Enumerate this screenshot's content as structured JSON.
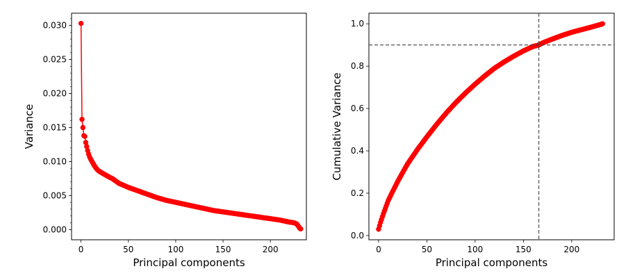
{
  "chart_data": [
    {
      "type": "line",
      "xlabel": "Principal components",
      "ylabel": "Variance",
      "xlim": [
        -10,
        238
      ],
      "ylim": [
        -0.0015,
        0.0318
      ],
      "xticks": [
        0,
        50,
        100,
        150,
        200
      ],
      "xtick_labels": [
        "0",
        "50",
        "100",
        "150",
        "200"
      ],
      "yticks": [
        0.0,
        0.005,
        0.01,
        0.015,
        0.02,
        0.025,
        0.03
      ],
      "ytick_labels": [
        "0.000",
        "0.005",
        "0.010",
        "0.015",
        "0.020",
        "0.025",
        "0.030"
      ],
      "grid": false,
      "series": [
        {
          "color": "#ff0000",
          "marker": "circle",
          "x": [
            0,
            1,
            2,
            3,
            4,
            5,
            6,
            7,
            8,
            9,
            10,
            12,
            14,
            16,
            18,
            20,
            25,
            30,
            33,
            35,
            40,
            45,
            50,
            60,
            70,
            80,
            90,
            100,
            110,
            120,
            130,
            140,
            150,
            160,
            170,
            180,
            190,
            200,
            210,
            220,
            225,
            228,
            229,
            230,
            231,
            232
          ],
          "y": [
            0.0303,
            0.0162,
            0.015,
            0.0138,
            0.0137,
            0.0128,
            0.0122,
            0.0116,
            0.0111,
            0.0107,
            0.0104,
            0.0099,
            0.0094,
            0.009,
            0.0087,
            0.0085,
            0.0081,
            0.0077,
            0.0075,
            0.0073,
            0.0068,
            0.0065,
            0.0062,
            0.0057,
            0.0052,
            0.0047,
            0.0043,
            0.004,
            0.0037,
            0.0034,
            0.0031,
            0.0028,
            0.0026,
            0.0024,
            0.0022,
            0.002,
            0.0018,
            0.0016,
            0.0014,
            0.0011,
            0.001,
            0.0008,
            0.0006,
            0.0004,
            0.0002,
            0.0001
          ]
        }
      ]
    },
    {
      "type": "line",
      "xlabel": "Principal components",
      "ylabel": "Cumulative Variance",
      "xlim": [
        -10,
        244
      ],
      "ylim": [
        -0.02,
        1.05
      ],
      "xticks": [
        0,
        50,
        100,
        150,
        200
      ],
      "xtick_labels": [
        "0",
        "50",
        "100",
        "150",
        "200"
      ],
      "yticks": [
        0.0,
        0.2,
        0.4,
        0.6,
        0.8,
        1.0
      ],
      "ytick_labels": [
        "0.0",
        "0.2",
        "0.4",
        "0.6",
        "0.8",
        "1.0"
      ],
      "grid": false,
      "reference_lines": [
        {
          "orientation": "horizontal",
          "value": 0.9,
          "style": "dashed",
          "color": "#404040"
        },
        {
          "orientation": "vertical",
          "value": 166,
          "style": "dashed",
          "color": "#404040"
        }
      ],
      "series": [
        {
          "color": "#ff0000",
          "marker": "circle",
          "x": [
            0,
            2,
            5,
            10,
            15,
            20,
            25,
            30,
            40,
            50,
            60,
            70,
            80,
            90,
            100,
            110,
            120,
            130,
            140,
            150,
            160,
            166,
            170,
            180,
            190,
            200,
            210,
            220,
            230,
            232
          ],
          "y": [
            0.03,
            0.062,
            0.103,
            0.165,
            0.212,
            0.257,
            0.298,
            0.338,
            0.405,
            0.466,
            0.524,
            0.578,
            0.628,
            0.673,
            0.715,
            0.754,
            0.79,
            0.82,
            0.847,
            0.872,
            0.893,
            0.9,
            0.91,
            0.928,
            0.945,
            0.96,
            0.972,
            0.984,
            0.997,
            1.0
          ]
        }
      ]
    }
  ]
}
